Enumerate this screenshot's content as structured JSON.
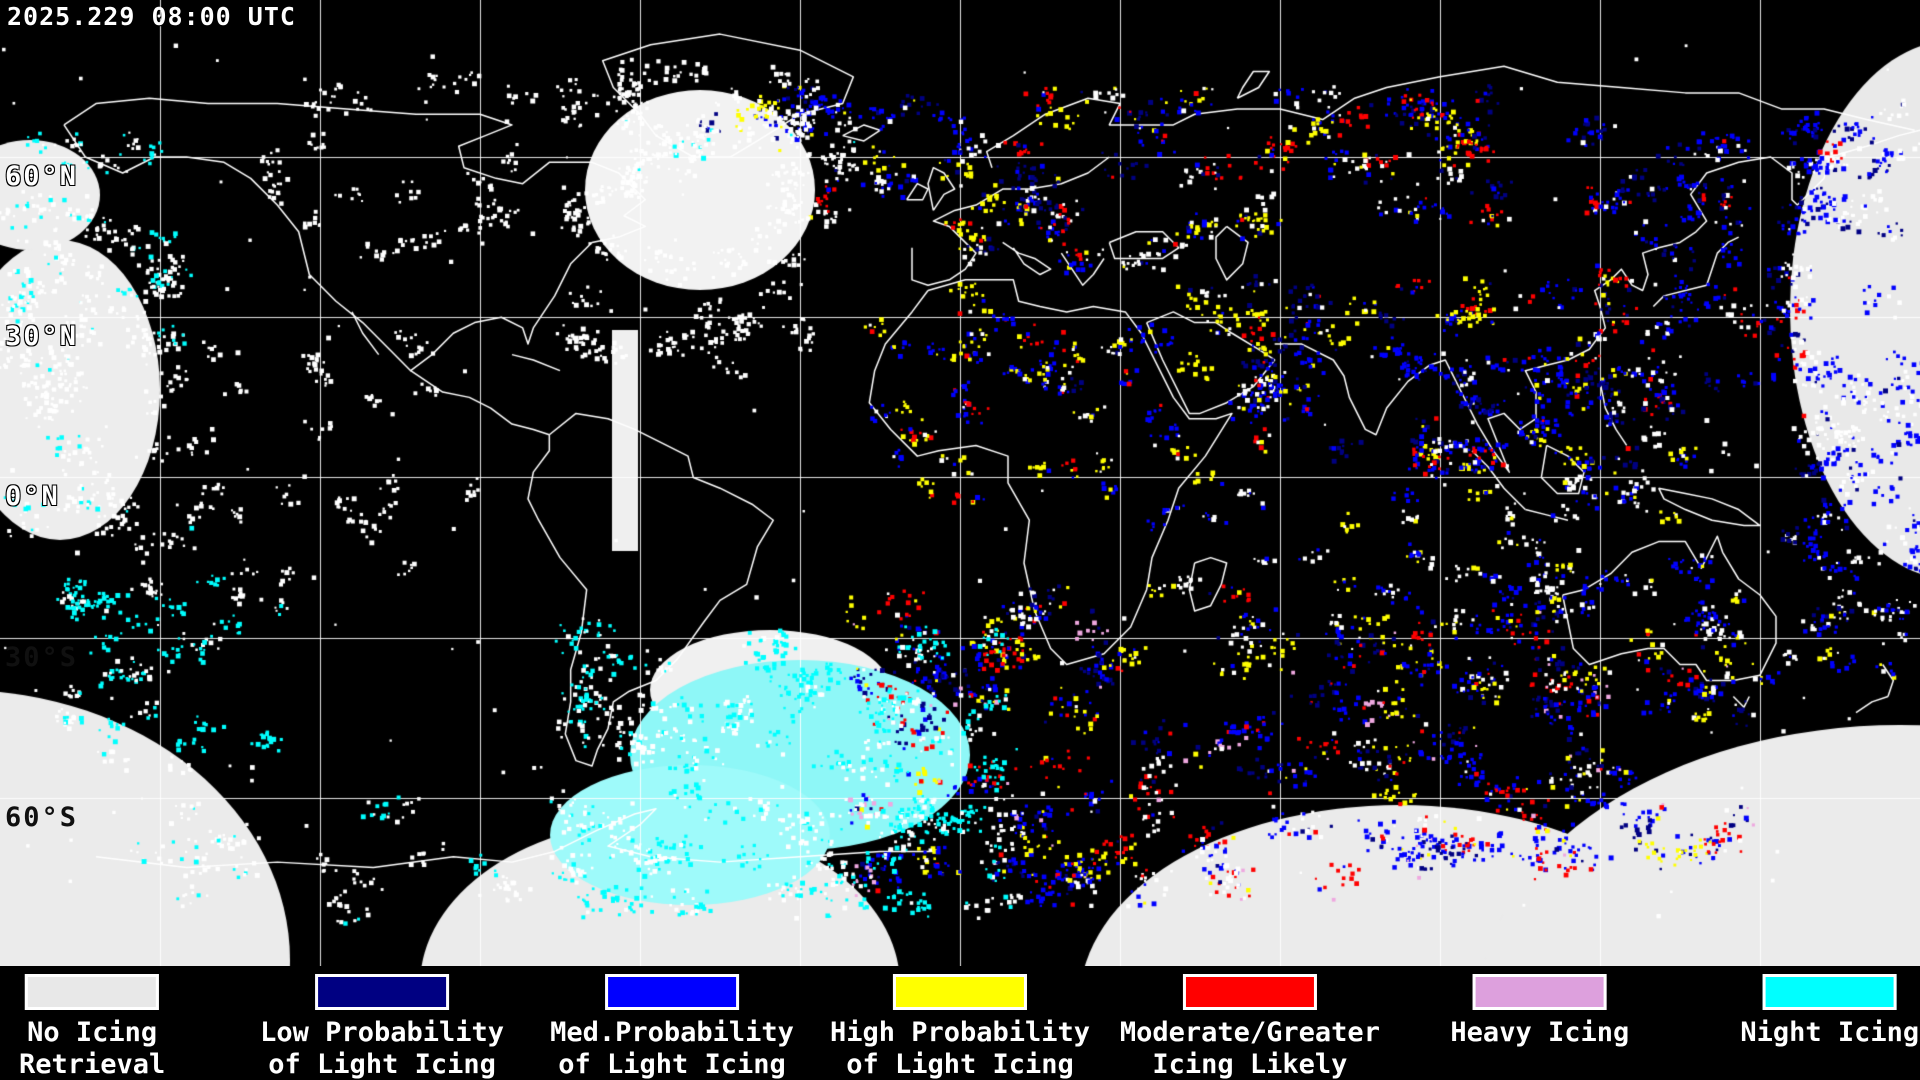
{
  "map": {
    "timestamp": "2025.229 08:00 UTC",
    "lat_labels": [
      "60°N",
      "30°N",
      "0°N",
      "30°S",
      "60°S"
    ]
  },
  "legend": {
    "items": [
      {
        "label_lines": [
          "No Icing",
          "Retrieval"
        ],
        "color": "#e8e8e8"
      },
      {
        "label_lines": [
          "Low Probability",
          "of Light Icing"
        ],
        "color": "#000082"
      },
      {
        "label_lines": [
          "Med.Probability",
          "of Light Icing"
        ],
        "color": "#0000ff"
      },
      {
        "label_lines": [
          "High Probability",
          "of Light Icing"
        ],
        "color": "#ffff00"
      },
      {
        "label_lines": [
          "Moderate/Greater",
          "Icing Likely"
        ],
        "color": "#ff0000"
      },
      {
        "label_lines": [
          "Heavy Icing"
        ],
        "color": "#dda0dd"
      },
      {
        "label_lines": [
          "Night Icing"
        ],
        "color": "#00ffff"
      }
    ]
  }
}
